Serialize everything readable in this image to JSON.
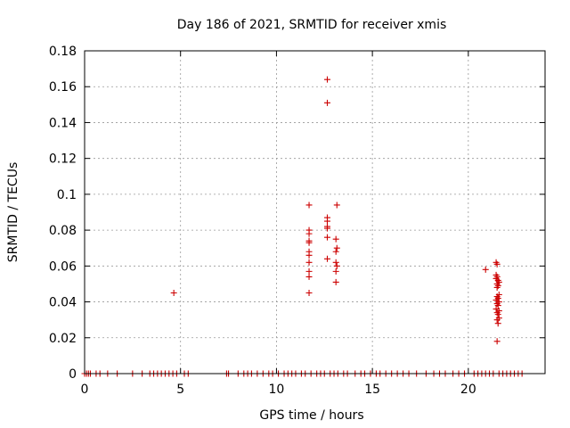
{
  "chart_data": {
    "type": "scatter",
    "title": "Day 186 of 2021, SRMTID for receiver xmis",
    "xlabel": "GPS time / hours",
    "ylabel": "SRMTID / TECUs",
    "xlim": [
      0,
      24
    ],
    "ylim": [
      0,
      0.18
    ],
    "grid": true,
    "x_ticks": [
      0,
      5,
      10,
      15,
      20
    ],
    "x_tick_labels": [
      "0",
      "5",
      "10",
      "15",
      "20"
    ],
    "y_ticks": [
      0,
      0.02,
      0.04,
      0.06,
      0.08,
      0.1,
      0.12,
      0.14,
      0.16,
      0.18
    ],
    "y_tick_labels": [
      "0",
      "0.02",
      "0.04",
      "0.06",
      "0.08",
      "0.1",
      "0.12",
      "0.14",
      "0.16",
      "0.18"
    ],
    "marker": "+",
    "color": "#cc0000",
    "series": [
      {
        "name": "SRMTID",
        "points": [
          [
            4.65,
            0.045
          ],
          [
            11.7,
            0.094
          ],
          [
            11.7,
            0.08
          ],
          [
            11.7,
            0.078
          ],
          [
            11.7,
            0.074
          ],
          [
            11.7,
            0.073
          ],
          [
            11.7,
            0.068
          ],
          [
            11.7,
            0.066
          ],
          [
            11.7,
            0.062
          ],
          [
            11.7,
            0.057
          ],
          [
            11.7,
            0.054
          ],
          [
            11.7,
            0.045
          ],
          [
            12.65,
            0.164
          ],
          [
            12.65,
            0.151
          ],
          [
            12.65,
            0.087
          ],
          [
            12.65,
            0.085
          ],
          [
            12.65,
            0.082
          ],
          [
            12.65,
            0.081
          ],
          [
            12.65,
            0.076
          ],
          [
            12.65,
            0.064
          ],
          [
            13.15,
            0.094
          ],
          [
            13.1,
            0.075
          ],
          [
            13.15,
            0.07
          ],
          [
            13.1,
            0.068
          ],
          [
            13.1,
            0.062
          ],
          [
            13.15,
            0.06
          ],
          [
            13.1,
            0.057
          ],
          [
            13.1,
            0.051
          ],
          [
            20.9,
            0.058
          ],
          [
            21.45,
            0.062
          ],
          [
            21.5,
            0.061
          ],
          [
            21.45,
            0.055
          ],
          [
            21.5,
            0.054
          ],
          [
            21.55,
            0.052
          ],
          [
            21.45,
            0.053
          ],
          [
            21.6,
            0.051
          ],
          [
            21.5,
            0.05
          ],
          [
            21.55,
            0.049
          ],
          [
            21.5,
            0.048
          ],
          [
            21.6,
            0.044
          ],
          [
            21.5,
            0.043
          ],
          [
            21.55,
            0.042
          ],
          [
            21.45,
            0.041
          ],
          [
            21.6,
            0.04
          ],
          [
            21.5,
            0.039
          ],
          [
            21.55,
            0.038
          ],
          [
            21.45,
            0.036
          ],
          [
            21.6,
            0.035
          ],
          [
            21.5,
            0.034
          ],
          [
            21.55,
            0.033
          ],
          [
            21.6,
            0.031
          ],
          [
            21.5,
            0.03
          ],
          [
            21.55,
            0.028
          ],
          [
            21.5,
            0.018
          ],
          [
            0.0,
            0
          ],
          [
            0.1,
            0
          ],
          [
            0.2,
            0
          ],
          [
            0.3,
            0
          ],
          [
            0.6,
            0
          ],
          [
            0.8,
            0
          ],
          [
            1.2,
            0
          ],
          [
            1.7,
            0
          ],
          [
            2.5,
            0
          ],
          [
            3.0,
            0
          ],
          [
            3.4,
            0
          ],
          [
            3.6,
            0
          ],
          [
            3.8,
            0
          ],
          [
            4.0,
            0
          ],
          [
            4.2,
            0
          ],
          [
            4.4,
            0
          ],
          [
            4.6,
            0
          ],
          [
            4.8,
            0
          ],
          [
            5.2,
            0
          ],
          [
            5.4,
            0
          ],
          [
            7.4,
            0
          ],
          [
            7.5,
            0
          ],
          [
            8.0,
            0
          ],
          [
            8.3,
            0
          ],
          [
            8.5,
            0
          ],
          [
            8.7,
            0
          ],
          [
            9.0,
            0
          ],
          [
            9.3,
            0
          ],
          [
            9.6,
            0
          ],
          [
            9.8,
            0
          ],
          [
            10.1,
            0
          ],
          [
            10.4,
            0
          ],
          [
            10.6,
            0
          ],
          [
            10.8,
            0
          ],
          [
            11.0,
            0
          ],
          [
            11.3,
            0
          ],
          [
            11.5,
            0
          ],
          [
            11.8,
            0
          ],
          [
            12.1,
            0
          ],
          [
            12.3,
            0
          ],
          [
            12.5,
            0
          ],
          [
            12.8,
            0
          ],
          [
            13.0,
            0
          ],
          [
            13.2,
            0
          ],
          [
            13.5,
            0
          ],
          [
            13.7,
            0
          ],
          [
            14.1,
            0
          ],
          [
            14.4,
            0
          ],
          [
            14.6,
            0
          ],
          [
            14.9,
            0
          ],
          [
            15.2,
            0
          ],
          [
            15.4,
            0
          ],
          [
            15.7,
            0
          ],
          [
            16.0,
            0
          ],
          [
            16.3,
            0
          ],
          [
            16.6,
            0
          ],
          [
            16.9,
            0
          ],
          [
            17.3,
            0
          ],
          [
            17.8,
            0
          ],
          [
            18.2,
            0
          ],
          [
            18.5,
            0
          ],
          [
            18.8,
            0
          ],
          [
            19.2,
            0
          ],
          [
            19.5,
            0
          ],
          [
            19.8,
            0
          ],
          [
            20.3,
            0
          ],
          [
            20.5,
            0
          ],
          [
            20.7,
            0
          ],
          [
            20.9,
            0
          ],
          [
            21.1,
            0
          ],
          [
            21.3,
            0
          ],
          [
            21.6,
            0
          ],
          [
            21.8,
            0
          ],
          [
            22.0,
            0
          ],
          [
            22.2,
            0
          ],
          [
            22.4,
            0
          ],
          [
            22.6,
            0
          ],
          [
            22.8,
            0
          ]
        ]
      }
    ]
  }
}
